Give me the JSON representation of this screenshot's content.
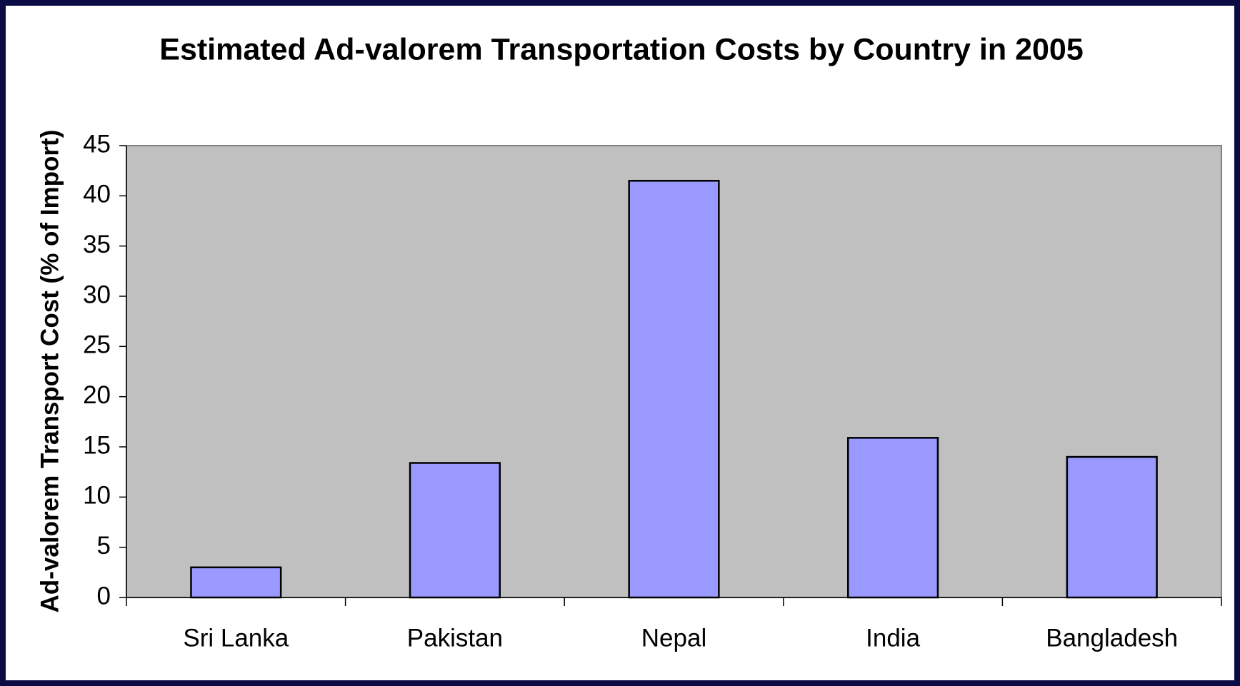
{
  "chart_data": {
    "type": "bar",
    "title": "Estimated Ad-valorem Transportation Costs by Country in 2005",
    "y_label": "Ad-valorem  Transport Cost (%  of Import)",
    "categories": [
      "Sri Lanka",
      "Pakistan",
      "Nepal",
      "India",
      "Bangladesh"
    ],
    "values": [
      3.0,
      13.4,
      41.5,
      15.9,
      14.0
    ],
    "color": "#9999ff",
    "ylim": [
      0,
      45
    ],
    "yticks": [
      0,
      5,
      10,
      15,
      20,
      25,
      30,
      35,
      40,
      45
    ],
    "grid": false
  }
}
